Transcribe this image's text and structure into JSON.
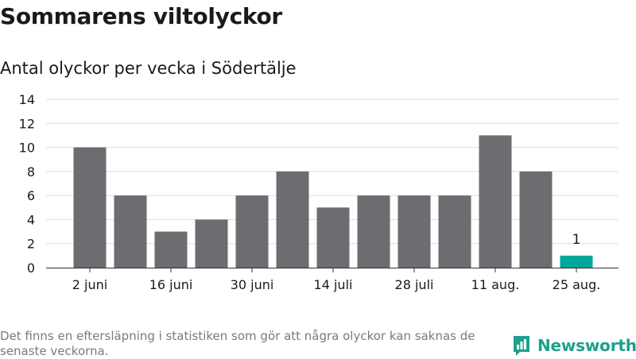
{
  "header": {
    "title": "Sommarens viltolyckor",
    "subtitle": "Antal olyckor per vecka i Södertälje"
  },
  "footer": {
    "note": "Det finns en eftersläpning i statistiken som gör att några olyckor kan saknas de senaste veckorna.",
    "brand": "Newsworthy"
  },
  "colors": {
    "bar": "#6d6c70",
    "highlight": "#00a79a",
    "grid": "#dcdcdc",
    "brand": "#1f9f8f"
  },
  "chart_data": {
    "type": "bar",
    "title": "Sommarens viltolyckor",
    "subtitle": "Antal olyckor per vecka i Södertälje",
    "xlabel": "",
    "ylabel": "",
    "ylim": [
      0,
      14
    ],
    "yticks": [
      0,
      2,
      4,
      6,
      8,
      10,
      12,
      14
    ],
    "grid": true,
    "legend": "none",
    "x_tick_labels": [
      {
        "index": 0,
        "label": "2 juni"
      },
      {
        "index": 2,
        "label": "16 juni"
      },
      {
        "index": 4,
        "label": "30 juni"
      },
      {
        "index": 6,
        "label": "14 juli"
      },
      {
        "index": 8,
        "label": "28 juli"
      },
      {
        "index": 10,
        "label": "11 aug."
      },
      {
        "index": 12,
        "label": "25 aug."
      }
    ],
    "values": [
      10,
      6,
      3,
      4,
      6,
      8,
      5,
      6,
      6,
      6,
      11,
      8,
      1
    ],
    "highlight_index": 12,
    "data_labels": [
      {
        "index": 12,
        "text": "1"
      }
    ]
  }
}
